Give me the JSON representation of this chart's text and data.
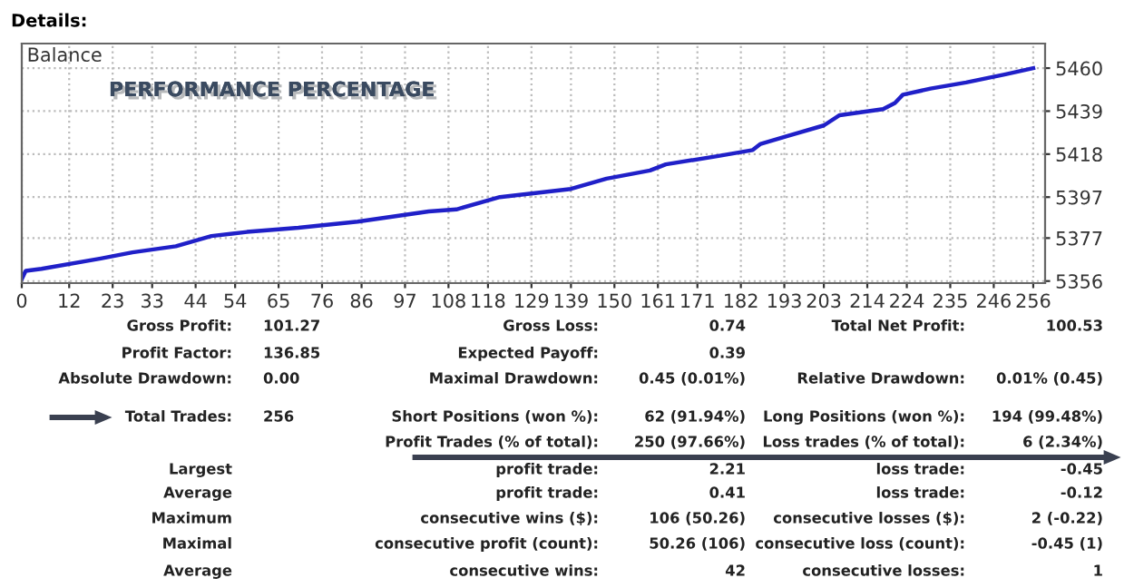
{
  "chart_data": {
    "type": "line",
    "title": "Details:",
    "subtitle": "PERFORMANCE PERCENTAGE",
    "x": [
      0,
      1,
      5,
      20,
      28,
      39,
      48,
      57,
      70,
      85,
      103,
      110,
      121,
      139,
      148,
      159,
      163,
      176,
      185,
      187,
      194,
      203,
      207,
      218,
      221,
      223,
      230,
      239,
      249,
      256
    ],
    "series": [
      {
        "name": "Balance",
        "color": "#2020c8",
        "values": [
          5357,
          5361,
          5362,
          5367,
          5370,
          5373,
          5378,
          5380,
          5382,
          5385,
          5390,
          5391,
          5397,
          5401,
          5406,
          5410,
          5413,
          5417,
          5420,
          5423,
          5427,
          5432,
          5437,
          5440,
          5443,
          5447,
          5450,
          5453,
          5457,
          5460
        ]
      }
    ],
    "xlim": [
      0,
      259
    ],
    "xticks": [
      0,
      12,
      23,
      33,
      44,
      54,
      65,
      76,
      86,
      97,
      108,
      118,
      129,
      139,
      150,
      161,
      171,
      182,
      193,
      203,
      214,
      224,
      235,
      246,
      256
    ],
    "ylim": [
      5355,
      5472
    ],
    "yticks": [
      5356,
      5377,
      5397,
      5418,
      5439,
      5460
    ],
    "grid": true,
    "line_style": "solid",
    "marker": "none",
    "annotations": [
      "Gross Profit:",
      "101.27",
      "Gross Loss:",
      "0.74",
      "Total Net Profit:",
      "100.53",
      "Profit Factor:",
      "136.85",
      "Expected Payoff:",
      "0.39",
      "Absolute Drawdown:",
      "0.00",
      "Maximal Drawdown:",
      "0.45 (0.01%)",
      "Relative Drawdown:",
      "0.01% (0.45)",
      "Total Trades:",
      "256",
      "Short Positions (won %):",
      "62 (91.94%)",
      "Long Positions (won %):",
      "194 (99.48%)",
      "Profit Trades (% of total):",
      "250 (97.66%)",
      "Loss trades (% of total):",
      "6 (2.34%)",
      "Largest",
      "profit trade:",
      "2.21",
      "loss trade:",
      "-0.45",
      "Average",
      "profit trade:",
      "0.41",
      "loss trade:",
      "-0.12",
      "Maximum",
      "consecutive wins ($):",
      "106 (50.26)",
      "consecutive losses ($):",
      "2 (-0.22)",
      "Maximal",
      "consecutive profit (count):",
      "50.26 (106)",
      "consecutive loss (count):",
      "-0.45 (1)",
      "Average",
      "consecutive wins:",
      "42",
      "consecutive losses:",
      "1"
    ]
  }
}
